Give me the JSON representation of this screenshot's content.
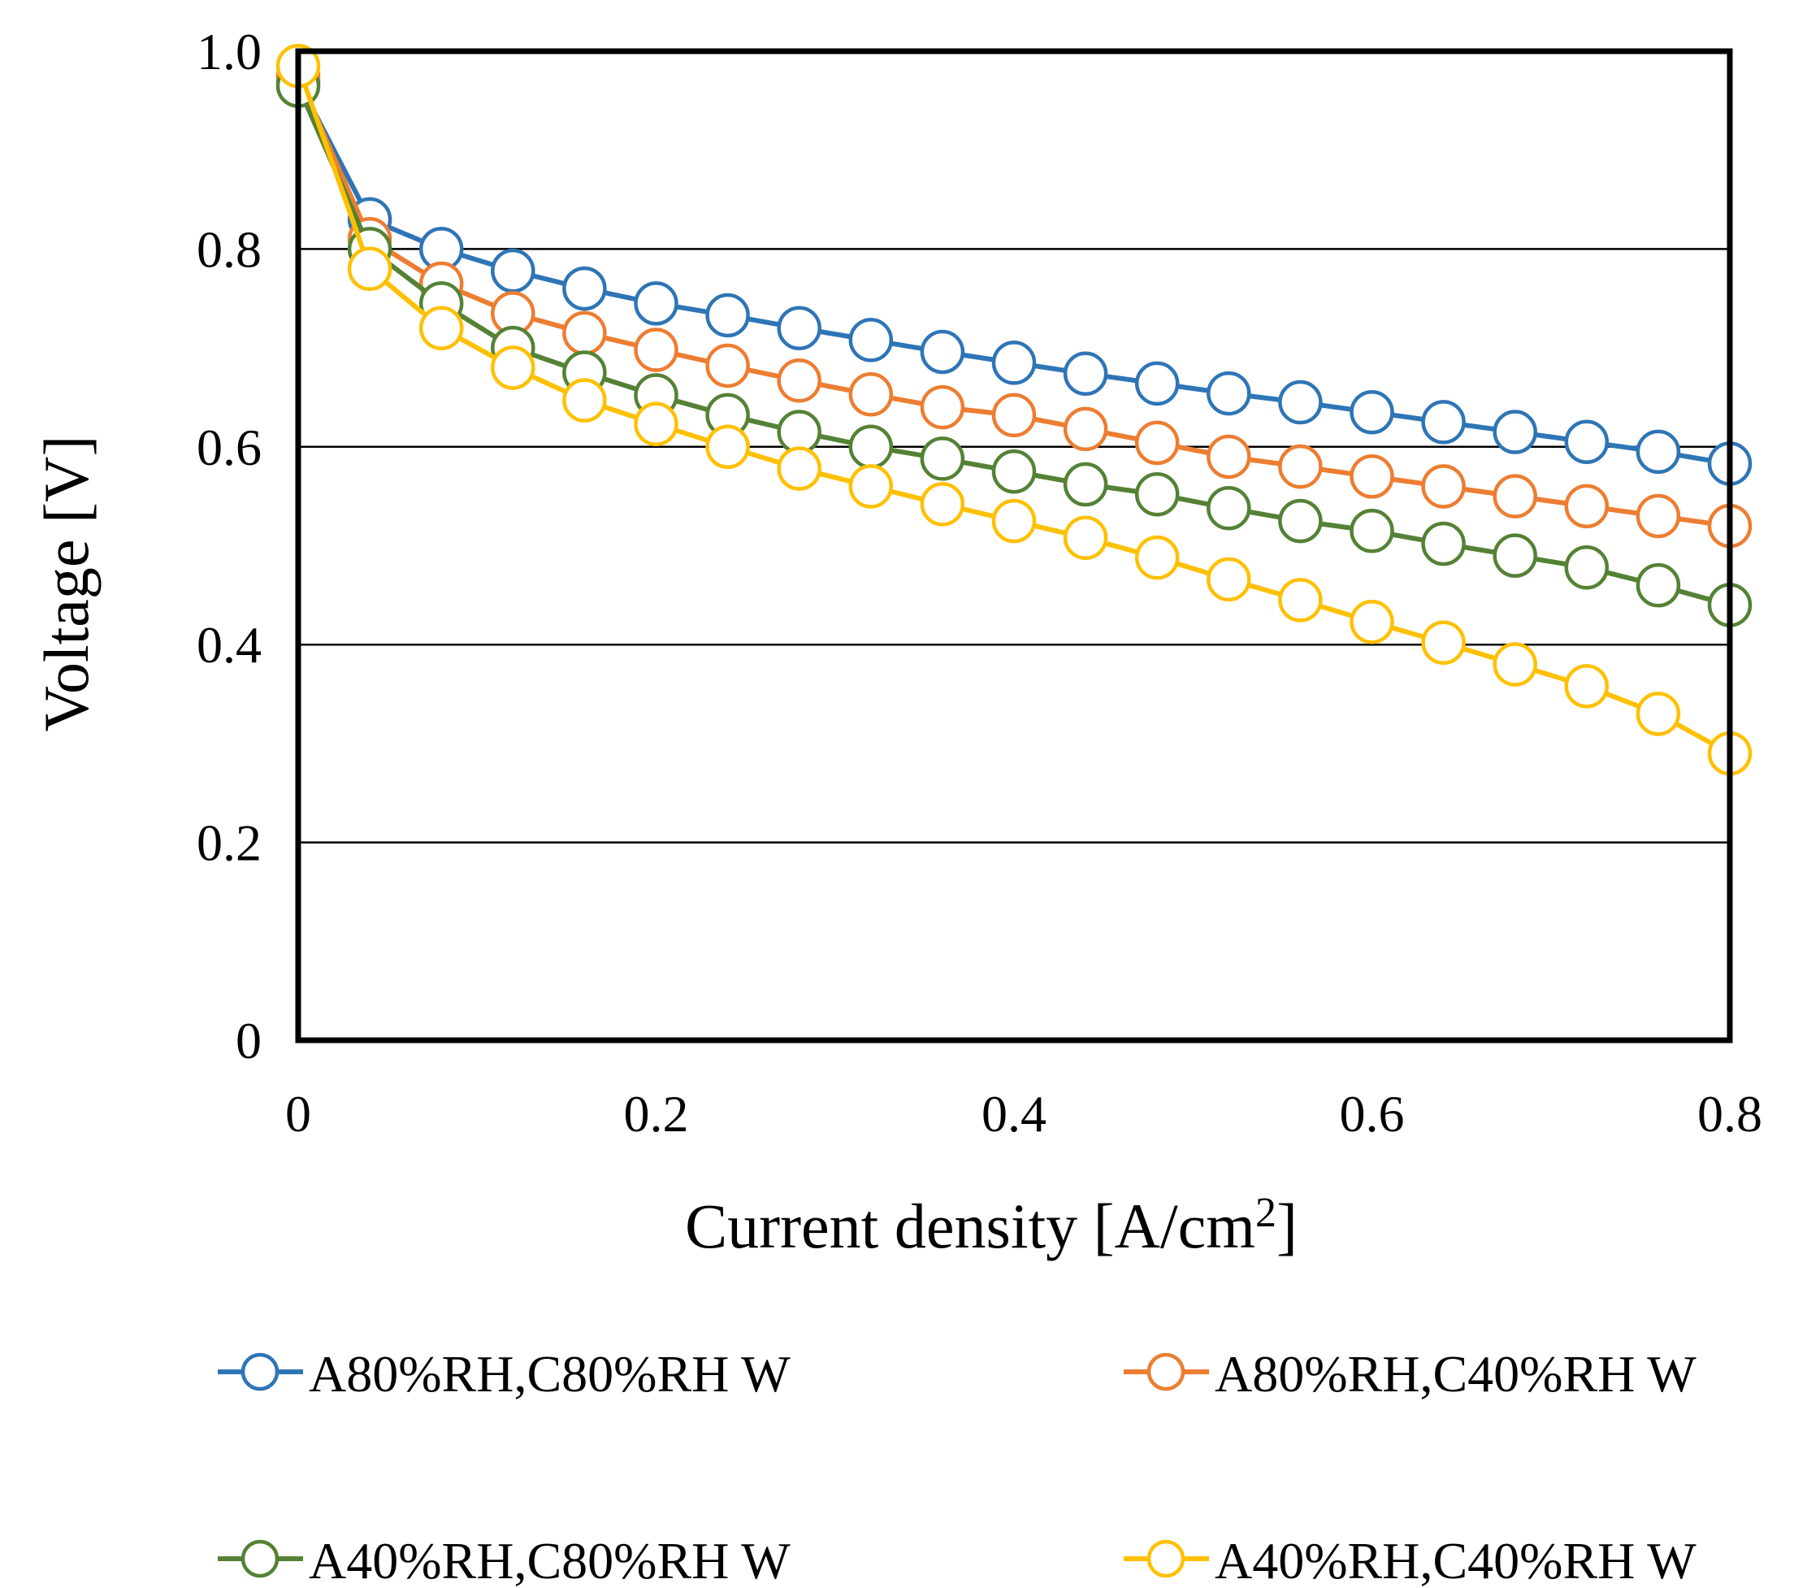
{
  "chart_data": {
    "type": "line",
    "title": "",
    "xlabel": "Current density [A/cm",
    "xlabel_sup": "2",
    "xlabel_suffix": "]",
    "ylabel": "Voltage [V]",
    "xlim": [
      0,
      0.8
    ],
    "ylim": [
      0,
      1.0
    ],
    "x_ticks": [
      0,
      0.2,
      0.4,
      0.6,
      0.8
    ],
    "x_tick_labels": [
      "0",
      "0.2",
      "0.4",
      "0.6",
      "0.8"
    ],
    "y_ticks": [
      0,
      0.2,
      0.4,
      0.6,
      0.8,
      1.0
    ],
    "y_tick_labels": [
      "0",
      "0.2",
      "0.4",
      "0.6",
      "0.8",
      "1.0"
    ],
    "grid": "horizontal",
    "legend_position": "bottom",
    "x": [
      0,
      0.04,
      0.08,
      0.12,
      0.16,
      0.2,
      0.24,
      0.28,
      0.32,
      0.36,
      0.4,
      0.44,
      0.48,
      0.52,
      0.56,
      0.6,
      0.64,
      0.68,
      0.72,
      0.76,
      0.8
    ],
    "series": [
      {
        "name": "A80%RH,C80%RH W",
        "color": "#2e75b6",
        "values": [
          0.97,
          0.83,
          0.8,
          0.778,
          0.76,
          0.745,
          0.733,
          0.72,
          0.708,
          0.696,
          0.685,
          0.674,
          0.664,
          0.654,
          0.645,
          0.635,
          0.625,
          0.615,
          0.605,
          0.595,
          0.583
        ]
      },
      {
        "name": "A80%RH,C40%RH W",
        "color": "#ed7d31",
        "values": [
          0.975,
          0.81,
          0.765,
          0.735,
          0.715,
          0.698,
          0.682,
          0.667,
          0.653,
          0.64,
          0.632,
          0.618,
          0.604,
          0.59,
          0.58,
          0.57,
          0.56,
          0.55,
          0.54,
          0.53,
          0.52
        ]
      },
      {
        "name": "A40%RH,C80%RH W",
        "color": "#548235",
        "values": [
          0.965,
          0.8,
          0.745,
          0.7,
          0.675,
          0.652,
          0.632,
          0.615,
          0.6,
          0.588,
          0.575,
          0.562,
          0.552,
          0.538,
          0.525,
          0.515,
          0.502,
          0.49,
          0.478,
          0.46,
          0.44
        ]
      },
      {
        "name": "A40%RH,C40%RH W",
        "color": "#ffc000",
        "values": [
          0.985,
          0.78,
          0.72,
          0.68,
          0.647,
          0.623,
          0.6,
          0.578,
          0.56,
          0.542,
          0.525,
          0.508,
          0.488,
          0.466,
          0.445,
          0.423,
          0.402,
          0.38,
          0.358,
          0.33,
          0.29
        ]
      }
    ]
  }
}
